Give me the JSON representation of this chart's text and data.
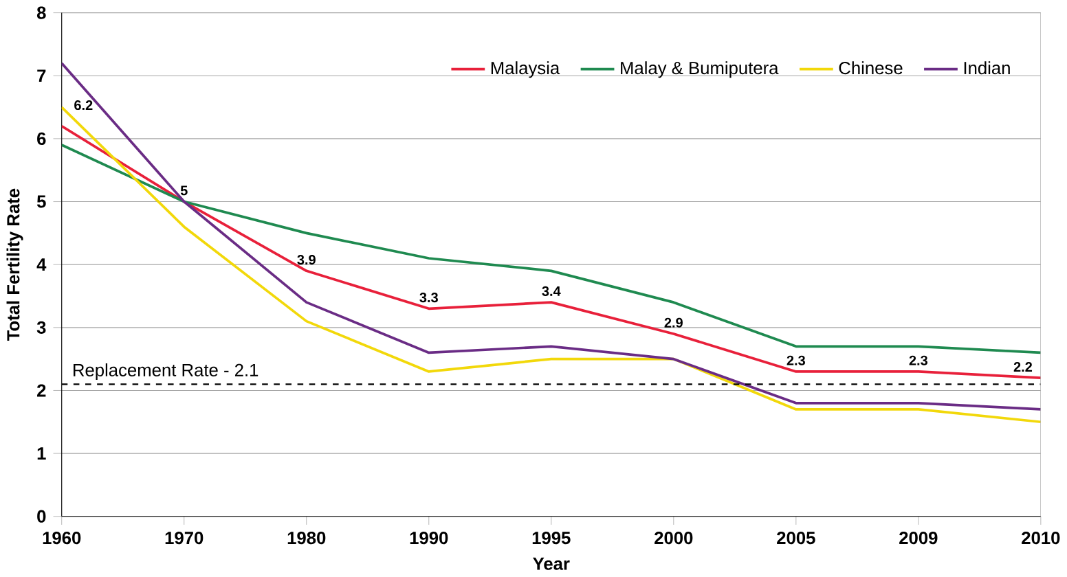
{
  "chart_data": {
    "type": "line",
    "xlabel": "Year",
    "ylabel": "Total Fertility Rate",
    "categories": [
      "1960",
      "1970",
      "1980",
      "1990",
      "1995",
      "2000",
      "2005",
      "2009",
      "2010"
    ],
    "series": [
      {
        "name": "Malaysia",
        "color": "#e8203a",
        "values": [
          6.2,
          5,
          3.9,
          3.3,
          3.4,
          2.9,
          2.3,
          2.3,
          2.2
        ],
        "value_labels": [
          "6.2",
          "5",
          "3.9",
          "3.3",
          "3.4",
          "2.9",
          "2.3",
          "2.3",
          "2.2"
        ]
      },
      {
        "name": "Malay & Bumiputera",
        "color": "#1f8a50",
        "values": [
          5.9,
          5.0,
          4.5,
          4.1,
          3.9,
          3.4,
          2.7,
          2.7,
          2.6
        ]
      },
      {
        "name": "Chinese",
        "color": "#f2d80a",
        "values": [
          6.5,
          4.6,
          3.1,
          2.3,
          2.5,
          2.5,
          1.7,
          1.7,
          1.5
        ]
      },
      {
        "name": "Indian",
        "color": "#6a2c85",
        "values": [
          7.2,
          5.0,
          3.4,
          2.6,
          2.7,
          2.5,
          1.8,
          1.8,
          1.7
        ]
      }
    ],
    "ylim": [
      0,
      8
    ],
    "yticks": [
      0,
      1,
      2,
      3,
      4,
      5,
      6,
      7,
      8
    ],
    "grid": "y",
    "legend": "top right",
    "line_style": "solid",
    "ref_lines": [
      {
        "axis": "y",
        "value": 2.1,
        "label": "Replacement Rate - 2.1",
        "line_style": "dashed",
        "color": "#000000"
      }
    ]
  }
}
